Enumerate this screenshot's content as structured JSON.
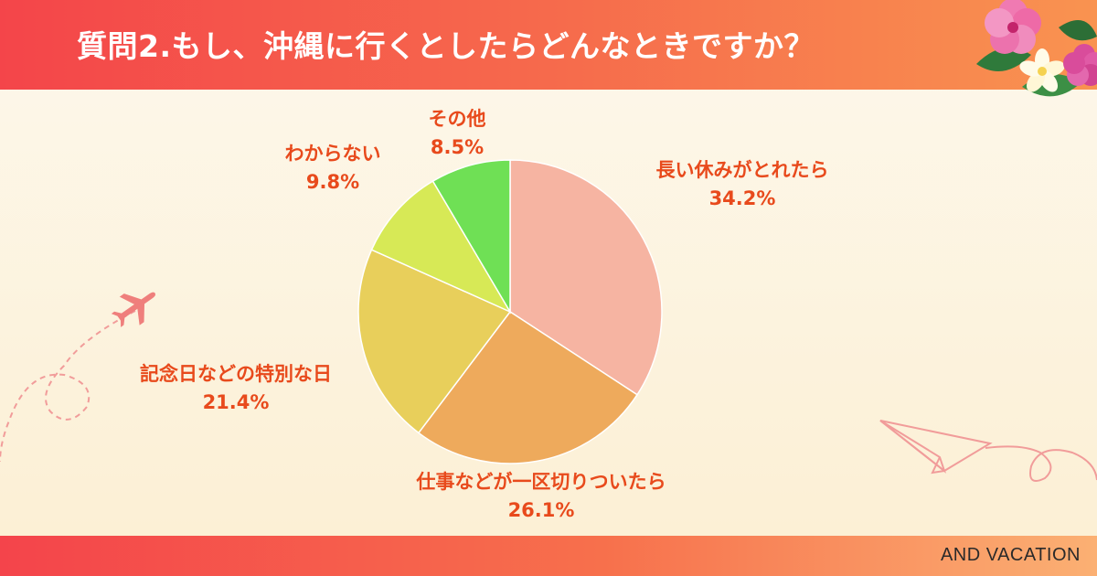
{
  "header": {
    "title": "質問2.もし、沖縄に行くとしたらどんなときですか？"
  },
  "footer": {
    "brand": "AND VACATION"
  },
  "colors": {
    "banner_start": "#f4454a",
    "banner_end": "#f99350",
    "label_text": "#e84a1c"
  },
  "chart_data": {
    "type": "pie",
    "title": "質問2.もし、沖縄に行くとしたらどんなときですか？",
    "start": "12 o'clock",
    "direction": "clockwise",
    "slices": [
      {
        "label": "長い休みがとれたら",
        "value": 34.2,
        "value_label": "34.2%",
        "color": "#f6b4a2"
      },
      {
        "label": "仕事などが一区切りついたら",
        "value": 26.1,
        "value_label": "26.1%",
        "color": "#eeaa5c"
      },
      {
        "label": "記念日などの特別な日",
        "value": 21.4,
        "value_label": "21.4%",
        "color": "#e8cf5b"
      },
      {
        "label": "わからない",
        "value": 9.8,
        "value_label": "9.8%",
        "color": "#d7e956"
      },
      {
        "label": "その他",
        "value": 8.5,
        "value_label": "8.5%",
        "color": "#6fe055"
      }
    ]
  },
  "decorations": {
    "flowers": "hibiscus-flowers",
    "airplane": "airplane-icon",
    "paper_plane": "paper-plane-icon"
  }
}
